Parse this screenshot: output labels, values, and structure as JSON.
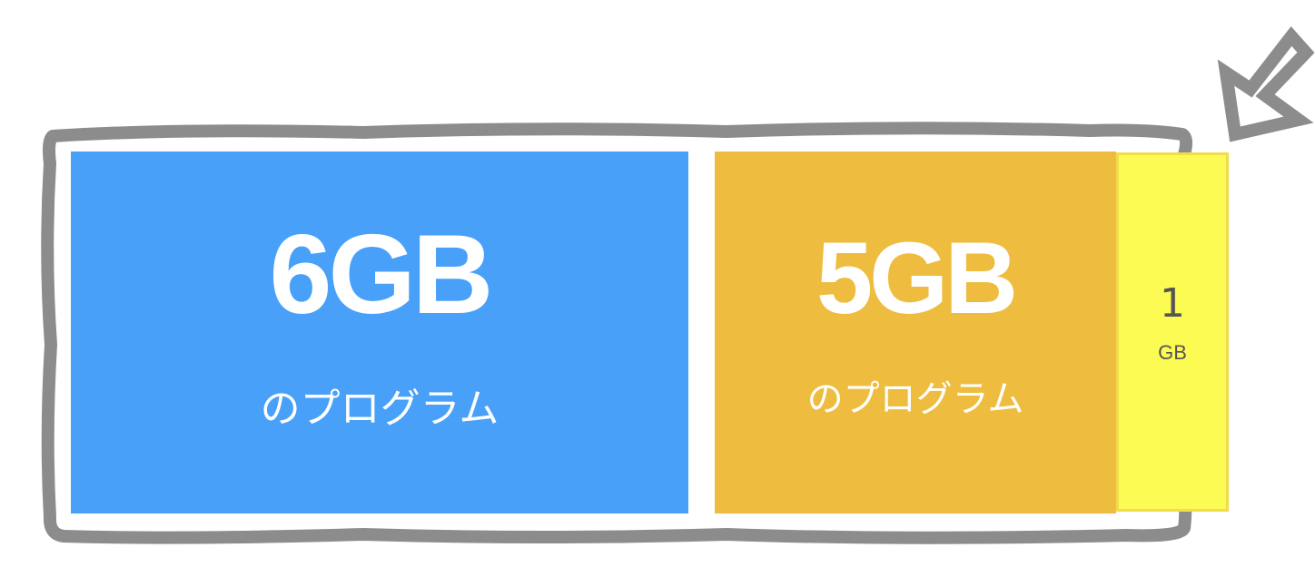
{
  "colors": {
    "frame": "#8c8c8c",
    "blue": "#48a0f9",
    "orange": "#eebd3f",
    "yellow": "#fcfb53",
    "text_light": "#ffffff",
    "text_dark": "#555555"
  },
  "blocks": [
    {
      "id": "blue",
      "value_label": "6GB",
      "caption": "のプログラム"
    },
    {
      "id": "orange",
      "value_label": "5GB",
      "caption": "のプログラム"
    },
    {
      "id": "yellow",
      "value_label": "1",
      "caption": "GB"
    }
  ],
  "icons": {
    "pointer": "arrow-pointing-down-left-icon"
  }
}
